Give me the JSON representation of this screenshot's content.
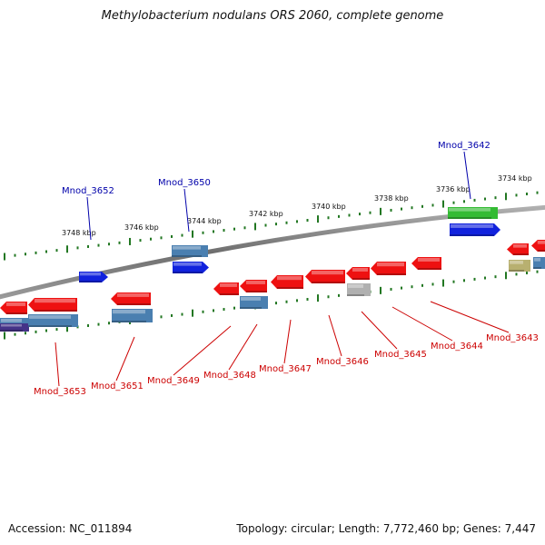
{
  "title": "Methylobacterium nodulans ORS 2060, complete genome",
  "footer": {
    "accession": "Accession: NC_011894",
    "summary": "Topology: circular; Length: 7,772,460 bp; Genes: 7,447"
  },
  "colors": {
    "backbone": "#888888",
    "tick": "#227722",
    "red_gene": "#ee1111",
    "blue_gene": "#1122dd",
    "steelblue_gene": "#4a7fb0",
    "green_gene": "#33bb33",
    "gray_gene": "#b0b0b0",
    "olive_gene": "#b8b070",
    "navy_gene": "#443388",
    "label_red": "#cc0000",
    "label_blue": "#0000aa"
  },
  "kbp_labels": [
    "3748 kbp",
    "3746 kbp",
    "3744 kbp",
    "3742 kbp",
    "3740 kbp",
    "3738 kbp",
    "3736 kbp",
    "3734 kbp"
  ],
  "top_labels": [
    "Mnod_3652",
    "Mnod_3650",
    "Mnod_3642"
  ],
  "bottom_labels": [
    "Mnod_3653",
    "Mnod_3651",
    "Mnod_3649",
    "Mnod_3648",
    "Mnod_3647",
    "Mnod_3646",
    "Mnod_3645",
    "Mnod_3644",
    "Mnod_3643"
  ]
}
